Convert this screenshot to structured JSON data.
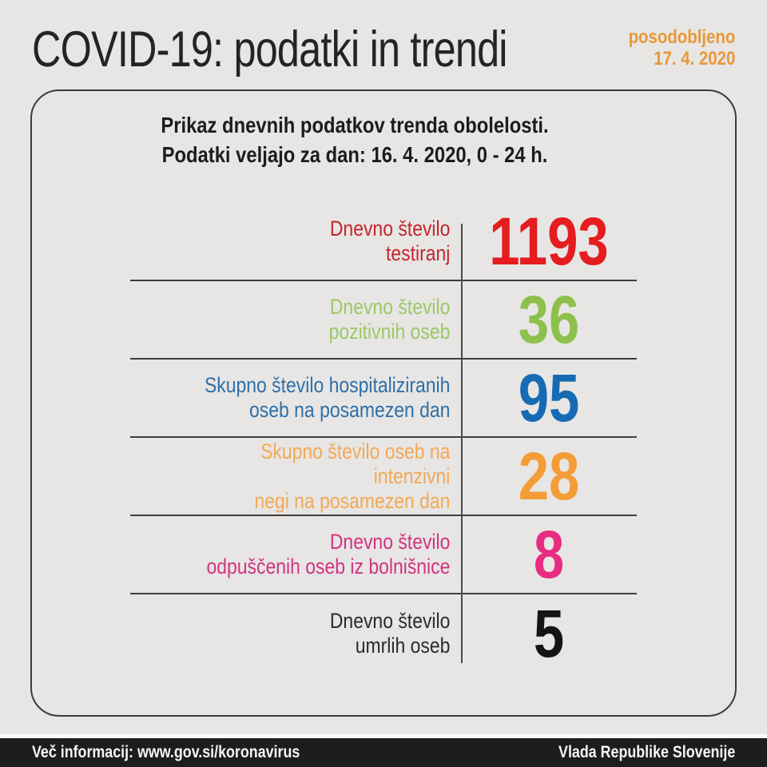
{
  "header": {
    "title": "COVID-19: podatki in trendi",
    "updated_label": "posodobljeno",
    "updated_date": "17. 4. 2020"
  },
  "card": {
    "intro_line1": "Prikaz dnevnih podatkov trenda obolelosti.",
    "intro_line2": "Podatki veljajo za dan: 16. 4. 2020, 0 - 24 h.",
    "rows": [
      {
        "label_line1": "Dnevno število",
        "label_line2": "testiranj",
        "value": "1193",
        "label_color": "#c4262c",
        "value_color": "#e51c20"
      },
      {
        "label_line1": "Dnevno število",
        "label_line2": "pozitivnih oseb",
        "value": "36",
        "label_color": "#9dc768",
        "value_color": "#8dc04d"
      },
      {
        "label_line1": "Skupno število hospitaliziranih",
        "label_line2": "oseb na posamezen dan",
        "value": "95",
        "label_color": "#2f6fa9",
        "value_color": "#176bb4"
      },
      {
        "label_line1": "Skupno število oseb na intenzivni",
        "label_line2": "negi na posamezen dan",
        "value": "28",
        "label_color": "#f3a855",
        "value_color": "#f49c36"
      },
      {
        "label_line1": "Dnevno število",
        "label_line2": "odpuščenih oseb iz bolnišnice",
        "value": "8",
        "label_color": "#d23381",
        "value_color": "#e72c81"
      },
      {
        "label_line1": "Dnevno število",
        "label_line2": "umrlih oseb",
        "value": "5",
        "label_color": "#2b2b2b",
        "value_color": "#141414"
      }
    ]
  },
  "footer": {
    "left_text": "Več informacij: www.gov.si/koronavirus",
    "right_text": "Vlada Republike Slovenije"
  },
  "colors": {
    "background": "#e7e6e4",
    "card_border": "#3b3b3b",
    "divider": "#3e3e3e",
    "accent_orange": "#e8983a",
    "footer_bg": "#1d1d1d",
    "footer_text": "#f5f5f5"
  },
  "chart_data": {
    "type": "table",
    "title": "COVID-19: podatki in trendi",
    "subtitle": "Prikaz dnevnih podatkov trenda obolelosti. Podatki veljajo za dan: 16. 4. 2020, 0 - 24 h.",
    "updated": "17. 4. 2020",
    "categories": [
      "Dnevno število testiranj",
      "Dnevno število pozitivnih oseb",
      "Skupno število hospitaliziranih oseb na posamezen dan",
      "Skupno število oseb na intenzivni negi na posamezen dan",
      "Dnevno število odpuščenih oseb iz bolnišnice",
      "Dnevno število umrlih oseb"
    ],
    "values": [
      1193,
      36,
      95,
      28,
      8,
      5
    ],
    "value_colors": [
      "#e51c20",
      "#8dc04d",
      "#176bb4",
      "#f49c36",
      "#e72c81",
      "#141414"
    ]
  }
}
